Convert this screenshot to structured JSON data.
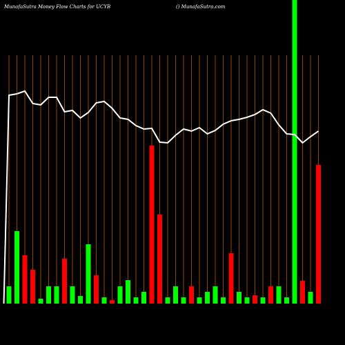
{
  "chart_data": {
    "type": "money-flow",
    "title": "MunafaSutra  Money Flow  Charts for UCYB",
    "subtitle": "() MunafaSutra.com",
    "categories": [
      null,
      null,
      null,
      null,
      null,
      null,
      null,
      null,
      null,
      null,
      null,
      null,
      null,
      null,
      null,
      null,
      null,
      null,
      null,
      null,
      null,
      null,
      null,
      null,
      null,
      null,
      null,
      null,
      null,
      null,
      null,
      null,
      null,
      null,
      null,
      null,
      null,
      null,
      null,
      null,
      null
    ],
    "bars": {
      "values": [
        null,
        25,
        105,
        70,
        49,
        7,
        25,
        25,
        65,
        25,
        11,
        86,
        41,
        9,
        5,
        25,
        34,
        9,
        17,
        229,
        129,
        9,
        25,
        9,
        25,
        9,
        17,
        25,
        9,
        73,
        17,
        9,
        12,
        9,
        25,
        25,
        9,
        440,
        33,
        17,
        201
      ],
      "colors": [
        null,
        "#00ff00",
        "#00ff00",
        "#ff0000",
        "#ff0000",
        "#00ff00",
        "#00ff00",
        "#00ff00",
        "#ff0000",
        "#00ff00",
        "#00ff00",
        "#00ff00",
        "#ff0000",
        "#00ff00",
        "#ff0000",
        "#00ff00",
        "#00ff00",
        "#00ff00",
        "#00ff00",
        "#ff0000",
        "#ff0000",
        "#00ff00",
        "#00ff00",
        "#00ff00",
        "#ff0000",
        "#00ff00",
        "#00ff00",
        "#00ff00",
        "#00ff00",
        "#ff0000",
        "#00ff00",
        "#00ff00",
        "#ff0000",
        "#00ff00",
        "#ff0000",
        "#00ff00",
        "#00ff00",
        "#00ff00",
        "#ff0000",
        "#00ff00",
        "#ff0000"
      ]
    },
    "line": {
      "color": "#ffffff",
      "values": [
        0,
        302,
        304,
        308,
        290,
        288,
        299,
        299,
        278,
        280,
        269,
        277,
        291,
        293,
        283,
        269,
        267,
        258,
        253,
        254,
        234,
        233,
        244,
        253,
        250,
        255,
        246,
        251,
        260,
        265,
        267,
        270,
        274,
        281,
        276,
        259,
        246,
        245,
        233,
        242,
        250
      ]
    },
    "ylim": [
      0,
      440
    ],
    "grid": true,
    "grid_color": "#b35900"
  }
}
